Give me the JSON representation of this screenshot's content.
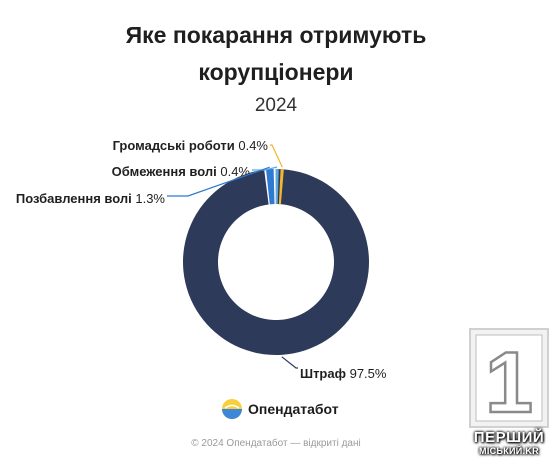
{
  "chart_data": {
    "type": "pie",
    "variant": "donut",
    "title_lines": [
      "Яке покарання отримують",
      "корупціонери"
    ],
    "subtitle": "2024",
    "slices": [
      {
        "label": "Громадські роботи",
        "value": 0.4,
        "value_label": "0.4%",
        "color": "#f2b52e"
      },
      {
        "label": "Обмеження волі",
        "value": 0.4,
        "value_label": "0.4%",
        "color": "#5fa8de"
      },
      {
        "label": "Позбавлення волі",
        "value": 1.3,
        "value_label": "1.3%",
        "color": "#2e7ad1"
      },
      {
        "label": "Штраф",
        "value": 97.5,
        "value_label": "97.5%",
        "color": "#2d3a5a"
      }
    ]
  },
  "brand": {
    "name": "Опендатабот",
    "logo_icon": "opendatabot-logo-icon"
  },
  "footer": "© 2024 Опендатабот — відкриті дані",
  "watermark": {
    "digit": "1",
    "line1": "ПЕРШИЙ",
    "line2": "МІСЬКИЙ.KR"
  }
}
